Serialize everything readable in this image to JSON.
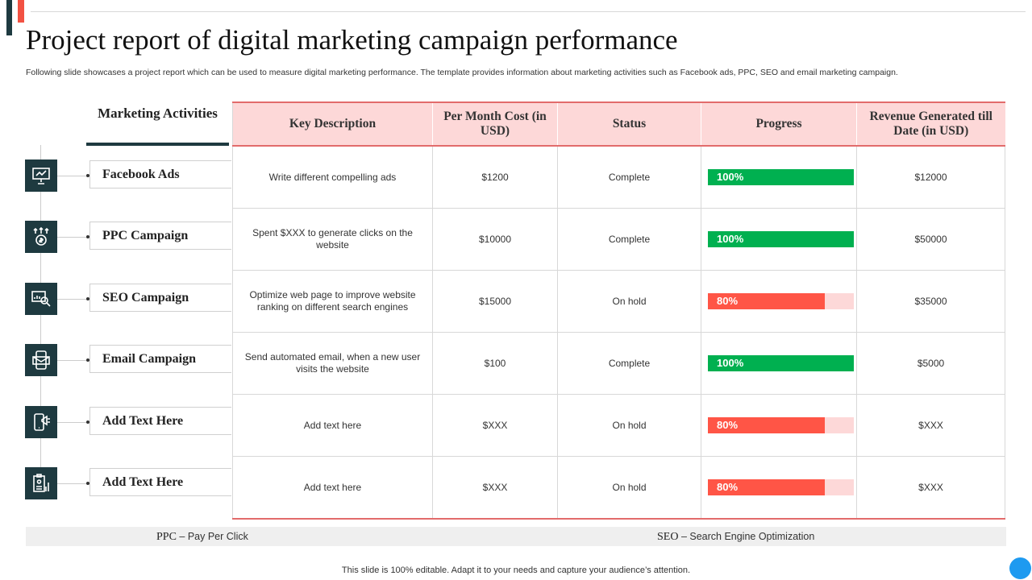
{
  "title": "Project report of digital marketing campaign performance",
  "subtitle": "Following slide showcases a project report which can be used to measure digital marketing performance. The template provides information about marketing activities such as Facebook ads, PPC, SEO and email marketing campaign.",
  "activities_header": "Marketing Activities",
  "columns": {
    "key_description": "Key Description",
    "per_month_cost": "Per Month Cost (in USD)",
    "status": "Status",
    "progress": "Progress",
    "revenue": "Revenue Generated till Date (in USD)"
  },
  "rows": [
    {
      "activity": "Facebook Ads",
      "icon": "presentation-board-icon",
      "description": "Write different compelling ads",
      "cost": "$1200",
      "status": "Complete",
      "progress": 100,
      "progress_label": "100%",
      "revenue": "$12000"
    },
    {
      "activity": "PPC Campaign",
      "icon": "dollar-arrows-icon",
      "description": "Spent $XXX to generate clicks on the website",
      "cost": "$10000",
      "status": "Complete",
      "progress": 100,
      "progress_label": "100%",
      "revenue": "$50000"
    },
    {
      "activity": "SEO Campaign",
      "icon": "chart-magnifier-icon",
      "description": "Optimize web page to improve website ranking on different search engines",
      "cost": "$15000",
      "status": "On hold",
      "progress": 80,
      "progress_label": "80%",
      "revenue": "$35000"
    },
    {
      "activity": "Email Campaign",
      "icon": "mobile-email-icon",
      "description": "Send automated email, when a new user visits the website",
      "cost": "$100",
      "status": "Complete",
      "progress": 100,
      "progress_label": "100%",
      "revenue": "$5000"
    },
    {
      "activity": "Add Text Here",
      "icon": "mobile-megaphone-icon",
      "description": "Add text here",
      "cost": "$XXX",
      "status": "On hold",
      "progress": 80,
      "progress_label": "80%",
      "revenue": "$XXX"
    },
    {
      "activity": "Add Text Here",
      "icon": "clipboard-chart-icon",
      "description": "Add text here",
      "cost": "$XXX",
      "status": "On hold",
      "progress": 80,
      "progress_label": "80%",
      "revenue": "$XXX"
    }
  ],
  "legend": [
    {
      "abbr": "PPC",
      "full": "– Pay Per Click"
    },
    {
      "abbr": "SEO",
      "full": "– Search Engine Optimization"
    }
  ],
  "footer_note": "This slide is 100% editable. Adapt it to your needs and capture your audience’s attention.",
  "colors": {
    "dark": "#1e3a40",
    "accent_red": "#f25243",
    "header_pink": "#fdd8d8",
    "complete_green": "#00b050",
    "hold_red": "#ff5546",
    "hold_track": "#fdd8d8",
    "complete_text": "#2e9e4f",
    "hold_text": "#e0443a"
  }
}
